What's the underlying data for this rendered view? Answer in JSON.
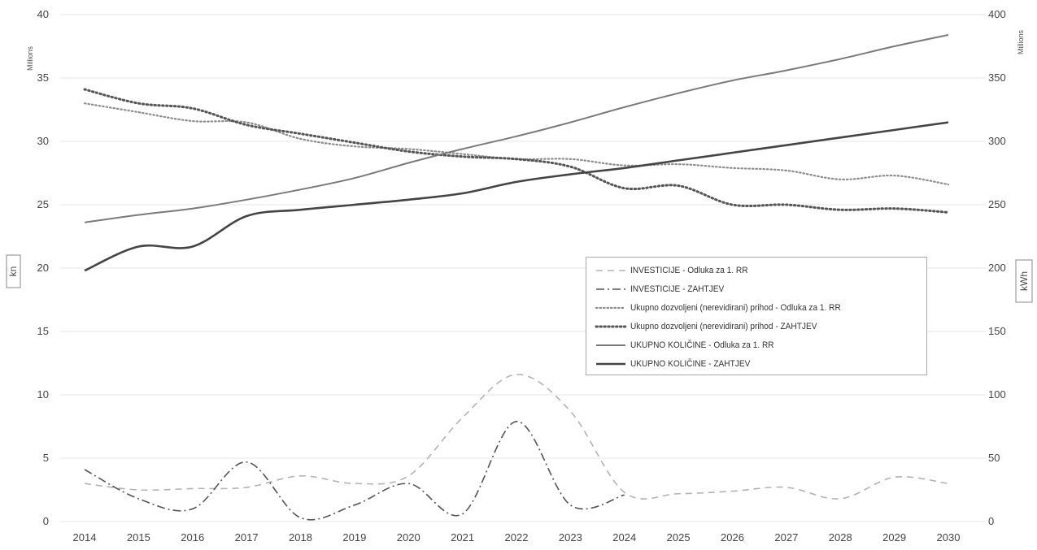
{
  "chart_data": {
    "type": "line",
    "x": [
      "2014",
      "2015",
      "2016",
      "2017",
      "2018",
      "2019",
      "2020",
      "2021",
      "2022",
      "2023",
      "2024",
      "2025",
      "2026",
      "2027",
      "2028",
      "2029",
      "2030"
    ],
    "left_axis": {
      "label": "kn",
      "unit": "Millions",
      "ylim": [
        0,
        40
      ],
      "ticks": [
        "0",
        "5",
        "10",
        "15",
        "20",
        "25",
        "30",
        "35",
        "40"
      ]
    },
    "right_axis": {
      "label": "kWh",
      "unit": "Millions",
      "ylim": [
        0,
        400
      ],
      "ticks": [
        "0",
        "50",
        "100",
        "150",
        "200",
        "250",
        "300",
        "350",
        "400"
      ]
    },
    "grid": true,
    "legend_position": "center-right",
    "series": [
      {
        "name": "INVESTICIJE - Odluka za 1. RR",
        "axis": "left",
        "dash": "dashed",
        "color": "#b3b3b3",
        "values": [
          3.0,
          2.5,
          2.6,
          2.7,
          3.6,
          3.0,
          3.6,
          8.2,
          11.6,
          8.7,
          2.3,
          2.2,
          2.4,
          2.7,
          1.8,
          3.5,
          3.0
        ]
      },
      {
        "name": "INVESTICIJE - ZAHTJEV",
        "axis": "left",
        "dash": "dashdot",
        "color": "#555555",
        "values": [
          4.1,
          1.8,
          1.0,
          4.7,
          0.3,
          1.3,
          3.0,
          0.6,
          7.9,
          1.3,
          2.1,
          null,
          null,
          null,
          null,
          null,
          null
        ]
      },
      {
        "name": "Ukupno dozvoljeni (nerevidirani) prihod - Odluka za 1. RR",
        "axis": "left",
        "dash": "dotted",
        "color": "#8c8c8c",
        "values": [
          33.0,
          32.3,
          31.6,
          31.5,
          30.2,
          29.6,
          29.4,
          29.0,
          28.6,
          28.6,
          28.1,
          28.2,
          27.9,
          27.7,
          27.0,
          27.3,
          26.6
        ]
      },
      {
        "name": "Ukupno dozvoljeni (nerevidirani) prihod - ZAHTJEV",
        "axis": "left",
        "dash": "dotted-heavy",
        "color": "#555555",
        "values": [
          34.1,
          33.0,
          32.6,
          31.3,
          30.6,
          29.9,
          29.2,
          28.8,
          28.6,
          28.0,
          26.3,
          26.5,
          25.0,
          25.0,
          24.6,
          24.7,
          24.4
        ]
      },
      {
        "name": "UKUPNO KOLIČINE - Odluka za 1. RR",
        "axis": "right",
        "dash": "solid",
        "color": "#7a7a7a",
        "values": [
          236,
          242,
          247,
          254,
          262,
          271,
          283,
          294,
          304,
          315,
          327,
          338,
          348,
          356,
          365,
          375,
          384
        ]
      },
      {
        "name": "UKUPNO KOLIČINE - ZAHTJEV",
        "axis": "right",
        "dash": "solid-heavy",
        "color": "#444444",
        "values": [
          198,
          217,
          217,
          241,
          246,
          250,
          254,
          259,
          268,
          274,
          279,
          285,
          291,
          297,
          303,
          309,
          315
        ]
      }
    ]
  }
}
